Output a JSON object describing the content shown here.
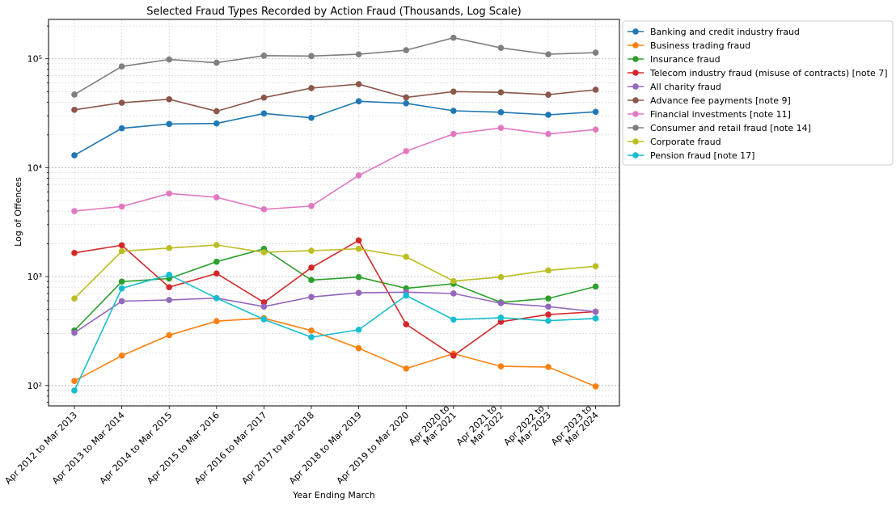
{
  "chart_data": {
    "type": "line",
    "title": "Selected Fraud Types Recorded by Action Fraud (Thousands, Log Scale)",
    "xlabel": "Year Ending March",
    "ylabel": "Log of Offences",
    "yscale": "log",
    "ylim": [
      65,
      230000
    ],
    "grid": true,
    "legend_position": "outside-top-right",
    "categories": [
      "Apr 2012 to Mar 2013",
      "Apr 2013 to Mar 2014",
      "Apr 2014 to Mar 2015",
      "Apr 2015 to Mar 2016",
      "Apr 2016 to Mar 2017",
      "Apr 2017 to Mar 2018",
      "Apr 2018 to Mar 2019",
      "Apr 2019 to Mar 2020",
      "Apr 2020 to\nMar 2021",
      "Apr 2021 to\nMar 2022",
      "Apr 2022 to\nMar 2023",
      "Apr 2023 to\nMar 2024"
    ],
    "y_ticks": [
      {
        "value": 100,
        "label": "10²"
      },
      {
        "value": 1000,
        "label": "10³"
      },
      {
        "value": 10000,
        "label": "10⁴"
      },
      {
        "value": 100000,
        "label": "10⁵"
      }
    ],
    "series": [
      {
        "name": "Banking and credit industry fraud",
        "color": "#1f77b4",
        "values": [
          13000,
          23000,
          25200,
          25500,
          31500,
          28700,
          40700,
          39000,
          33300,
          32300,
          30600,
          32600
        ]
      },
      {
        "name": "Business trading fraud",
        "color": "#ff7f0e",
        "values": [
          110,
          188,
          290,
          390,
          415,
          320,
          220,
          143,
          196,
          150,
          148,
          98
        ]
      },
      {
        "name": "Insurance fraud",
        "color": "#2ca02c",
        "values": [
          320,
          900,
          960,
          1370,
          1800,
          930,
          990,
          780,
          860,
          580,
          630,
          810
        ]
      },
      {
        "name": "Telecom industry fraud (misuse of contracts) [note 7]",
        "color": "#d62728",
        "values": [
          1650,
          1940,
          800,
          1070,
          580,
          1210,
          2150,
          365,
          188,
          385,
          448,
          476
        ]
      },
      {
        "name": "All charity fraud",
        "color": "#9467bd",
        "values": [
          305,
          595,
          610,
          635,
          530,
          650,
          710,
          720,
          700,
          570,
          530,
          476
        ]
      },
      {
        "name": "Advance fee payments [note 9]",
        "color": "#8c564b",
        "values": [
          34000,
          39500,
          42500,
          33000,
          44000,
          53800,
          58500,
          44200,
          50000,
          49200,
          46800,
          52000
        ]
      },
      {
        "name": "Financial investments [note 11]",
        "color": "#e377c2",
        "values": [
          4000,
          4400,
          5800,
          5350,
          4150,
          4450,
          8500,
          14200,
          20400,
          23200,
          20400,
          22400
        ]
      },
      {
        "name": "Consumer and retail fraud [note 14]",
        "color": "#7f7f7f",
        "values": [
          47000,
          85000,
          98500,
          92000,
          107000,
          106000,
          110000,
          120000,
          156000,
          126000,
          110000,
          114000
        ]
      },
      {
        "name": "Corporate fraud",
        "color": "#bcbd22",
        "values": [
          630,
          1710,
          1830,
          1950,
          1670,
          1730,
          1800,
          1520,
          910,
          990,
          1140,
          1245
        ]
      },
      {
        "name": "Pension fraud [note 17]",
        "color": "#17becf",
        "values": [
          90,
          780,
          1040,
          635,
          405,
          278,
          325,
          670,
          403,
          420,
          393,
          413
        ]
      }
    ]
  }
}
